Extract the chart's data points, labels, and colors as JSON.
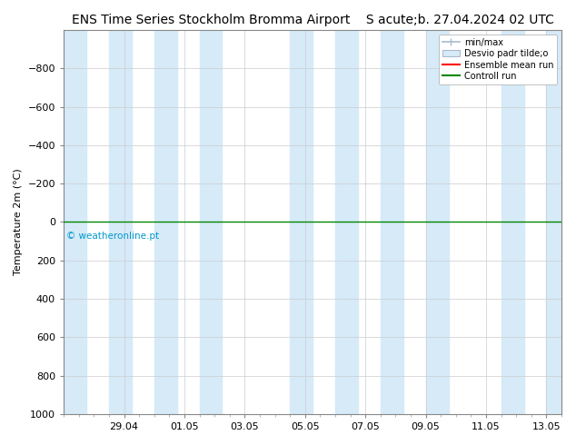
{
  "title_left": "ENS Time Series Stockholm Bromma Airport",
  "title_right": "S acute;b. 27.04.2024 02 UTC",
  "ylabel": "Temperature 2m (°C)",
  "ylim_bottom": 1000,
  "ylim_top": -1000,
  "xlim_left": 0,
  "xlim_right": 16.5,
  "yticks": [
    -800,
    -600,
    -400,
    -200,
    0,
    200,
    400,
    600,
    800,
    1000
  ],
  "xtick_labels": [
    "29.04",
    "01.05",
    "03.05",
    "05.05",
    "07.05",
    "09.05",
    "11.05",
    "13.05"
  ],
  "xtick_positions": [
    2,
    4,
    6,
    8,
    10,
    12,
    14,
    16
  ],
  "blue_bands": [
    [
      0.0,
      0.75
    ],
    [
      1.5,
      2.25
    ],
    [
      3.0,
      3.75
    ],
    [
      4.5,
      5.25
    ],
    [
      7.5,
      8.25
    ],
    [
      9.0,
      9.75
    ],
    [
      10.5,
      11.25
    ],
    [
      12.0,
      12.75
    ],
    [
      14.5,
      15.25
    ],
    [
      16.0,
      16.5
    ]
  ],
  "band_color": "#d6eaf8",
  "background_color": "#ffffff",
  "grid_color": "#cccccc",
  "green_line_y": 0,
  "green_line_color": "#008800",
  "red_line_color": "#ff0000",
  "watermark": "© weatheronline.pt",
  "watermark_color": "#0099cc",
  "legend_items": [
    "min/max",
    "Desvio padr tilde;o",
    "Ensemble mean run",
    "Controll run"
  ],
  "legend_colors_line": [
    "#aabbcc",
    "#aabbcc",
    "#ff0000",
    "#008800"
  ],
  "title_fontsize": 10,
  "axis_fontsize": 8,
  "tick_fontsize": 8
}
